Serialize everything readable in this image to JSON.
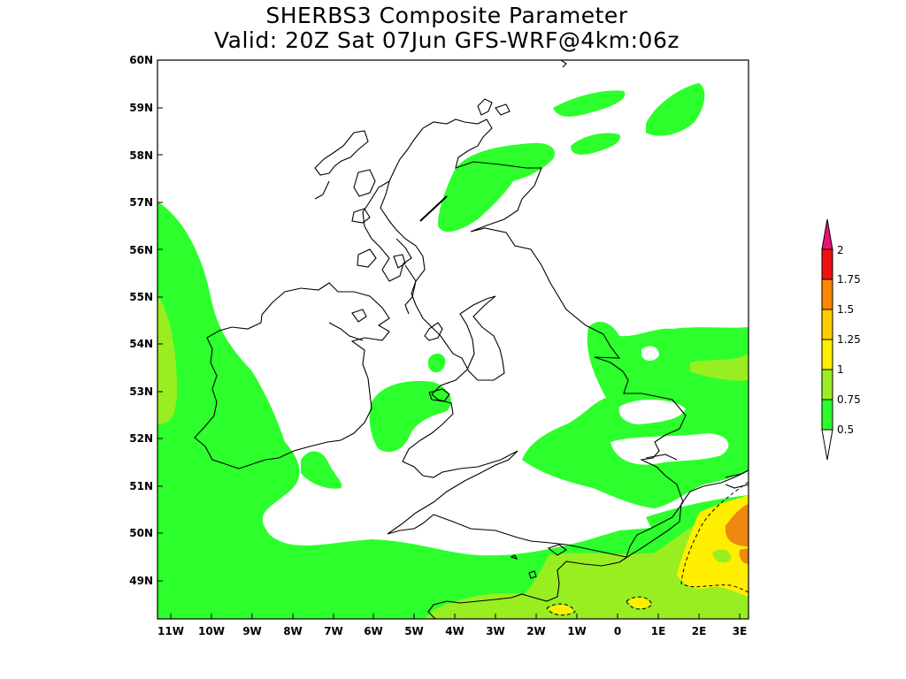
{
  "title": {
    "line1": "SHERBS3 Composite Parameter",
    "line2": "Valid: 20Z Sat 07Jun GFS-WRF@4km:06z"
  },
  "axes": {
    "lat_labels": [
      "60N",
      "59N",
      "58N",
      "57N",
      "56N",
      "55N",
      "54N",
      "53N",
      "52N",
      "51N",
      "50N",
      "49N"
    ],
    "lon_labels": [
      "11W",
      "10W",
      "9W",
      "8W",
      "7W",
      "6W",
      "5W",
      "4W",
      "3W",
      "2W",
      "1W",
      "0",
      "1E",
      "2E",
      "3E"
    ]
  },
  "colorbar": {
    "labels": [
      "0.5",
      "0.75",
      "1",
      "1.25",
      "1.5",
      "1.75",
      "2"
    ],
    "colors": [
      "#2cff2c",
      "#99ee22",
      "#ffee00",
      "#ffcc00",
      "#ff8800",
      "#ee1111",
      "#ee1177",
      "#ff22aa"
    ]
  },
  "palette": {
    "green": "#2cff2c",
    "yellowgreen": "#99ee22",
    "yellow": "#ffee00",
    "orange": "#ee8811",
    "coast": "#000000"
  }
}
